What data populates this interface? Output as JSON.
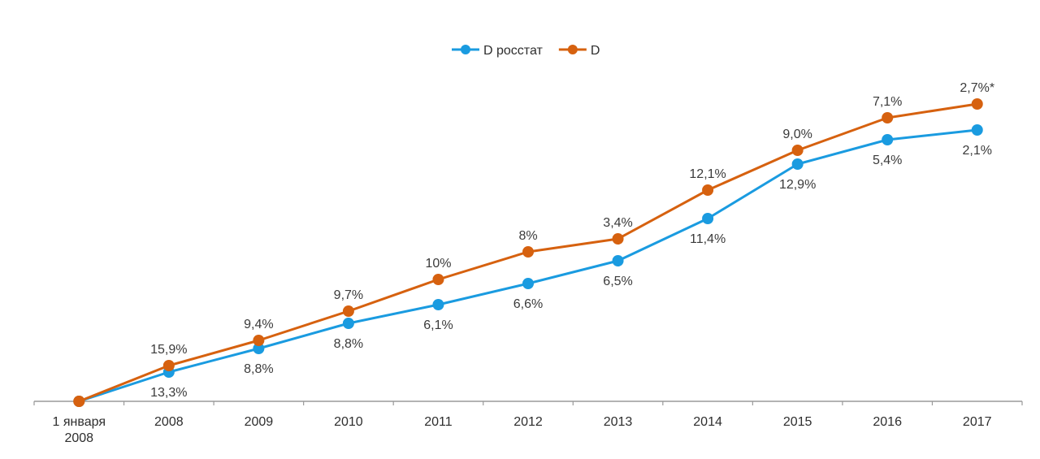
{
  "chart_data": {
    "type": "line",
    "title": "",
    "xlabel": "",
    "ylabel": "",
    "grid": false,
    "legend_position": "top-center",
    "categories": [
      [
        "1 января",
        "2008"
      ],
      [
        "2008"
      ],
      [
        "2009"
      ],
      [
        "2010"
      ],
      [
        "2011"
      ],
      [
        "2012"
      ],
      [
        "2013"
      ],
      [
        "2014"
      ],
      [
        "2015"
      ],
      [
        "2016"
      ],
      [
        "2017"
      ]
    ],
    "y_axis_visible": false,
    "ylim": [
      0,
      380
    ],
    "series": [
      {
        "name": "D росстат",
        "color": "#1a9be0",
        "values": [
          0,
          36,
          65,
          96,
          119,
          145,
          173,
          225,
          292,
          322,
          334
        ],
        "labels": [
          "",
          "13,3%",
          "8,8%",
          "8,8%",
          "6,1%",
          "6,6%",
          "6,5%",
          "11,4%",
          "12,9%",
          "5,4%",
          "2,1%"
        ],
        "label_position": "below"
      },
      {
        "name": "D",
        "color": "#d6610f",
        "values": [
          0,
          44,
          75,
          111,
          150,
          184,
          200,
          260,
          309,
          349,
          366
        ],
        "labels": [
          "",
          "15,9%",
          "9,4%",
          "9,7%",
          "10%",
          "8%",
          "3,4%",
          "12,1%",
          "9,0%",
          "7,1%",
          "2,7%*"
        ],
        "label_position": "above"
      }
    ],
    "note": "values are cumulative index estimates read from line positions; y-axis not shown"
  }
}
